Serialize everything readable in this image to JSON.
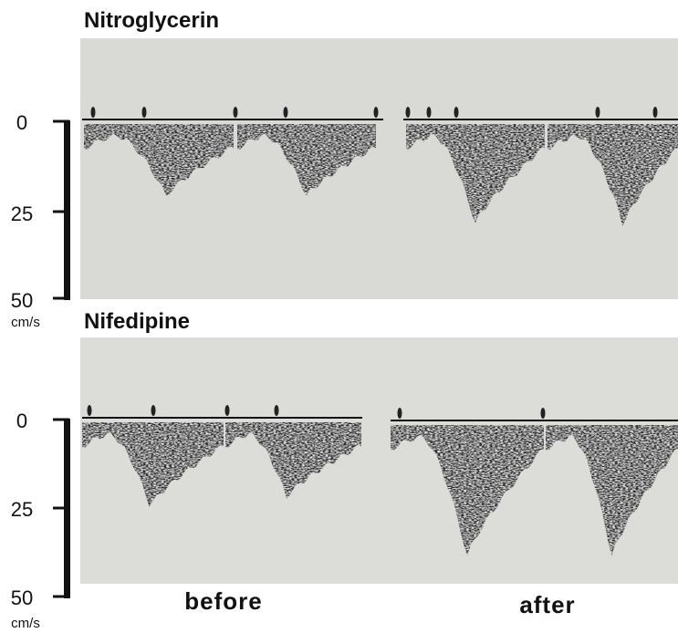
{
  "panels": [
    {
      "title": "Nitroglycerin",
      "axis_labels": [
        "0",
        "25",
        "50"
      ],
      "unit": "cm/s"
    },
    {
      "title": "Nifedipine",
      "axis_labels": [
        "0",
        "25",
        "50"
      ],
      "unit": "cm/s"
    }
  ],
  "captions": [
    "before",
    "after"
  ]
}
